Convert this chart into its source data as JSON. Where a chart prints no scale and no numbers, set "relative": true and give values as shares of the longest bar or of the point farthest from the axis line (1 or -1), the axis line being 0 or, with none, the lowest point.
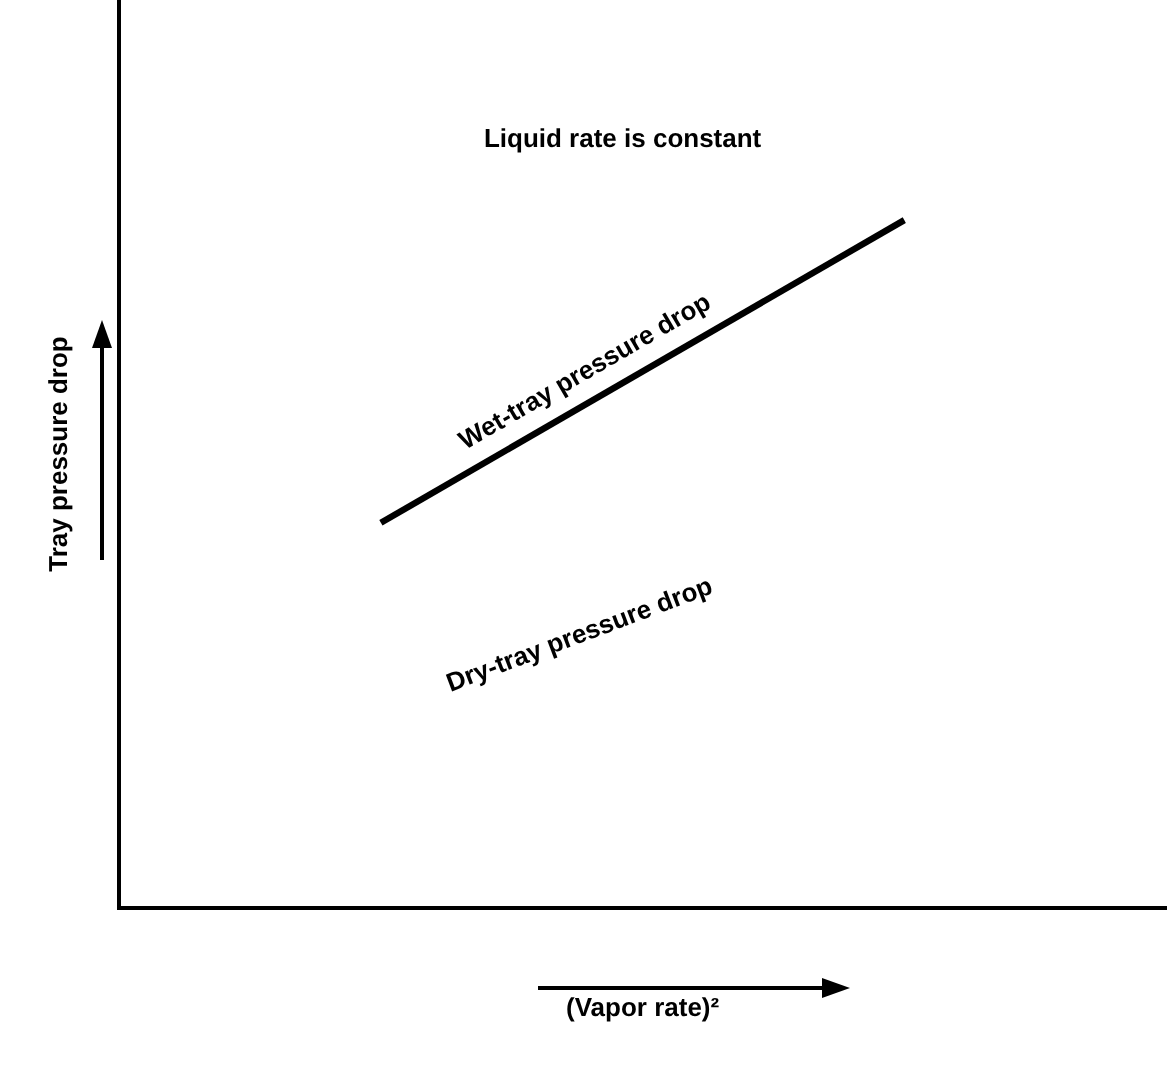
{
  "chart_data": {
    "type": "line",
    "relative": true,
    "xlabel": "(Vapor rate)²",
    "ylabel": "Tray pressure drop",
    "categories": [
      null,
      null
    ],
    "legend": false,
    "marker": "none",
    "line_style": "solid",
    "series": [
      {
        "name": "Wet-tray pressure drop",
        "color": "#000000",
        "values": [
          0.56,
          1
        ]
      }
    ],
    "annotations": [
      "Liquid rate is constant",
      "Dry-tray pressure drop"
    ]
  }
}
